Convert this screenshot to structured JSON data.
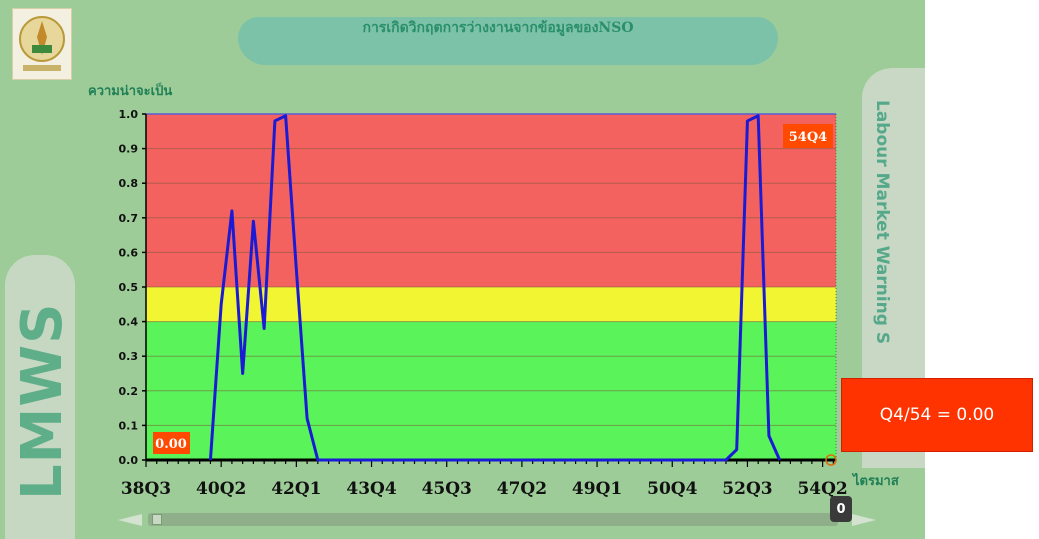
{
  "page": {
    "title": "การเกิดวิกฤตการว่างงานจากข้อมูลของNSO",
    "side_right_text": "Labour Market Warning S",
    "side_left_text": "LMWS",
    "tooltip": "Q4/54 = 0.00",
    "scroll_badge": "0"
  },
  "chart_data": {
    "type": "line",
    "title": "การเกิดวิกฤตการว่างงานจากข้อมูลของNSO",
    "ylabel": "ความน่าจะเป็น",
    "xlabel": "ไตรมาส",
    "ylim": [
      0,
      1
    ],
    "y_ticks": [
      "0.0",
      "0.1",
      "0.2",
      "0.3",
      "0.4",
      "0.5",
      "0.6",
      "0.7",
      "0.8",
      "0.9",
      "1.0"
    ],
    "x_tick_labels": [
      "38Q3",
      "40Q2",
      "42Q1",
      "43Q4",
      "45Q3",
      "47Q2",
      "49Q1",
      "50Q4",
      "52Q3",
      "54Q2"
    ],
    "bands": [
      {
        "from": 0.5,
        "to": 1.0,
        "color": "#f4625f"
      },
      {
        "from": 0.4,
        "to": 0.5,
        "color": "#f2f531"
      },
      {
        "from": 0.0,
        "to": 0.4,
        "color": "#5af45a"
      }
    ],
    "series": [
      {
        "color": "#1b1bd6",
        "points": [
          {
            "x": "40Q1",
            "y": 0.0
          },
          {
            "x": "40Q2",
            "y": 0.45
          },
          {
            "x": "40Q3",
            "y": 0.72
          },
          {
            "x": "40Q4",
            "y": 0.25
          },
          {
            "x": "41Q1",
            "y": 0.69
          },
          {
            "x": "41Q2",
            "y": 0.38
          },
          {
            "x": "41Q3",
            "y": 0.98
          },
          {
            "x": "41Q4",
            "y": 0.995
          },
          {
            "x": "42Q1",
            "y": 0.55
          },
          {
            "x": "42Q2",
            "y": 0.12
          },
          {
            "x": "42Q3",
            "y": 0.0
          },
          {
            "x": "52Q1",
            "y": 0.0
          },
          {
            "x": "52Q2",
            "y": 0.03
          },
          {
            "x": "52Q3",
            "y": 0.98
          },
          {
            "x": "52Q4",
            "y": 0.995
          },
          {
            "x": "53Q1",
            "y": 0.07
          },
          {
            "x": "53Q2",
            "y": 0.0
          }
        ]
      }
    ],
    "first_label": "0.00",
    "last_label": "54Q4",
    "grid": true
  }
}
